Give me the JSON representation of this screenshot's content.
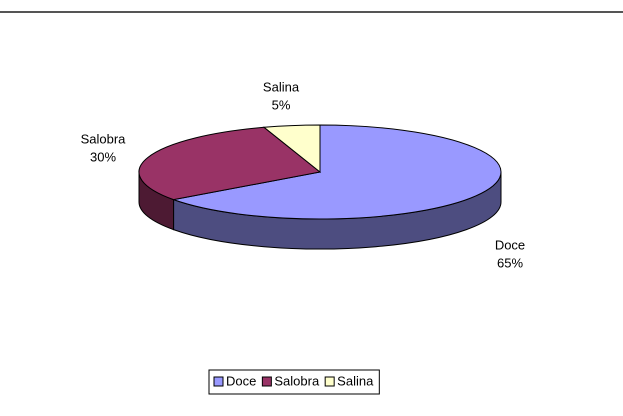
{
  "chart_data": {
    "type": "pie",
    "style": "3d",
    "categories": [
      "Doce",
      "Salobra",
      "Salina"
    ],
    "values": [
      65,
      30,
      5
    ],
    "value_labels": [
      "65%",
      "30%",
      "5%"
    ],
    "colors": [
      "#9999ff",
      "#993366",
      "#ffffcc"
    ],
    "legend": "bottom"
  }
}
